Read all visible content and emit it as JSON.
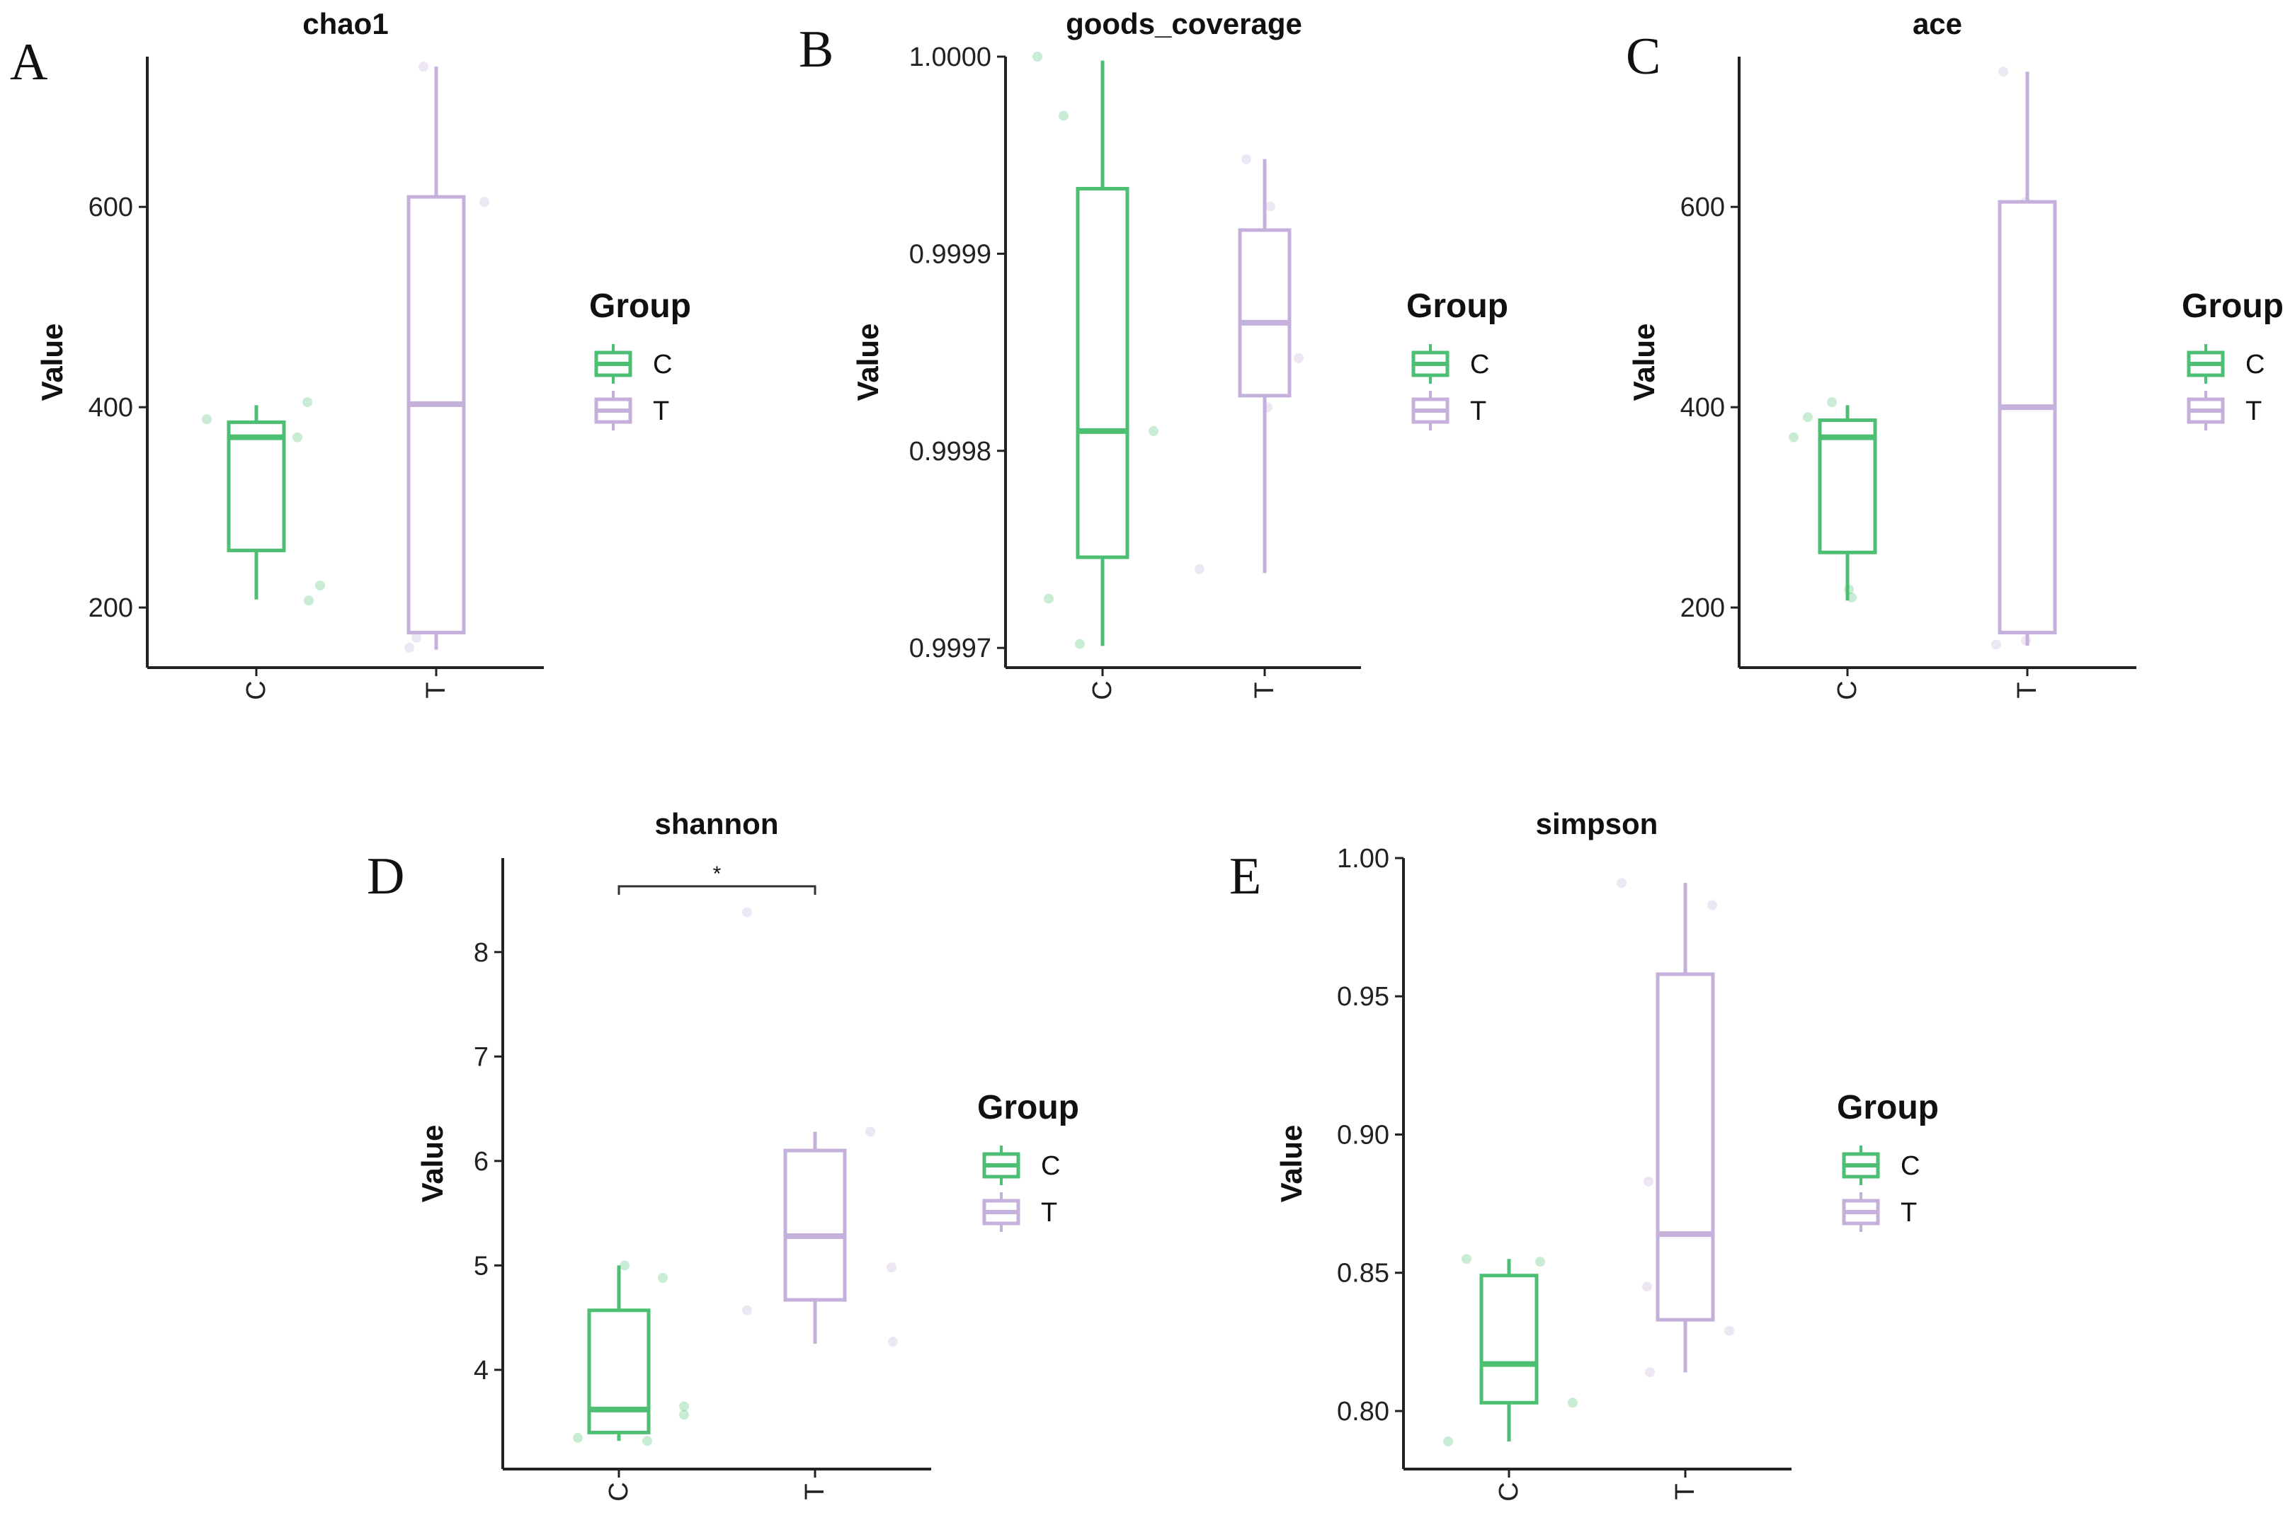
{
  "colors": {
    "C": "#4dbf73",
    "T": "#c5b0dc",
    "axis": "#222222"
  },
  "legend": {
    "title": "Group",
    "items": [
      "C",
      "T"
    ]
  },
  "chart_data": [
    {
      "panel": "A",
      "type": "box",
      "title": "chao1",
      "ylabel": "Value",
      "categories": [
        "C",
        "T"
      ],
      "ylim": [
        140,
        750
      ],
      "yticks": [
        200,
        400,
        600
      ],
      "boxes": [
        {
          "group": "C",
          "whisker_low": 208,
          "q1": 257,
          "median": 370,
          "q3": 385,
          "whisker_high": 402
        },
        {
          "group": "T",
          "whisker_low": 158,
          "q1": 175,
          "median": 403,
          "q3": 610,
          "whisker_high": 740
        }
      ],
      "points": [
        {
          "group": "C",
          "values": [
            388,
            405,
            370,
            222,
            207
          ]
        },
        {
          "group": "T",
          "values": [
            740,
            605,
            200,
            170,
            160
          ]
        }
      ]
    },
    {
      "panel": "B",
      "type": "box",
      "title": "goods_coverage",
      "ylabel": "Value",
      "categories": [
        "C",
        "T"
      ],
      "ylim": [
        0.99969,
        1.0
      ],
      "yticks": [
        0.9997,
        0.9998,
        0.9999,
        1.0
      ],
      "ytick_labels": [
        "0.9997",
        "0.9998",
        "0.9999",
        "1.0000"
      ],
      "boxes": [
        {
          "group": "C",
          "whisker_low": 0.999701,
          "q1": 0.999746,
          "median": 0.99981,
          "q3": 0.999933,
          "whisker_high": 0.999998
        },
        {
          "group": "T",
          "whisker_low": 0.999738,
          "q1": 0.999828,
          "median": 0.999865,
          "q3": 0.999912,
          "whisker_high": 0.999948
        }
      ],
      "points": [
        {
          "group": "C",
          "values": [
            1.0,
            0.99997,
            0.99981,
            0.999725,
            0.999702
          ]
        },
        {
          "group": "T",
          "values": [
            0.999948,
            0.999924,
            0.99988,
            0.999847,
            0.999822,
            0.99974
          ]
        }
      ]
    },
    {
      "panel": "C",
      "type": "box",
      "title": "ace",
      "ylabel": "Value",
      "categories": [
        "C",
        "T"
      ],
      "ylim": [
        140,
        750
      ],
      "yticks": [
        200,
        400,
        600
      ],
      "boxes": [
        {
          "group": "C",
          "whisker_low": 207,
          "q1": 255,
          "median": 370,
          "q3": 387,
          "whisker_high": 402
        },
        {
          "group": "T",
          "whisker_low": 162,
          "q1": 175,
          "median": 400,
          "q3": 605,
          "whisker_high": 735
        }
      ],
      "points": [
        {
          "group": "C",
          "values": [
            405,
            390,
            370,
            218,
            210
          ]
        },
        {
          "group": "T",
          "values": [
            735,
            605,
            200,
            167,
            163
          ]
        }
      ]
    },
    {
      "panel": "D",
      "type": "box",
      "title": "shannon",
      "ylabel": "Value",
      "categories": [
        "C",
        "T"
      ],
      "ylim": [
        3.05,
        8.9
      ],
      "yticks": [
        4,
        5,
        6,
        7,
        8
      ],
      "boxes": [
        {
          "group": "C",
          "whisker_low": 3.32,
          "q1": 3.4,
          "median": 3.62,
          "q3": 4.57,
          "whisker_high": 5.0
        },
        {
          "group": "T",
          "whisker_low": 4.25,
          "q1": 4.67,
          "median": 5.28,
          "q3": 6.1,
          "whisker_high": 6.28
        }
      ],
      "points": [
        {
          "group": "C",
          "values": [
            5.0,
            4.88,
            3.65,
            3.57,
            3.35,
            3.32
          ]
        },
        {
          "group": "T",
          "values": [
            8.38,
            6.28,
            5.55,
            4.98,
            4.57,
            4.27
          ]
        }
      ],
      "significance": {
        "label": "*",
        "between": [
          "C",
          "T"
        ],
        "y": 8.63
      }
    },
    {
      "panel": "E",
      "type": "box",
      "title": "simpson",
      "ylabel": "Value",
      "categories": [
        "C",
        "T"
      ],
      "ylim": [
        0.779,
        1.0
      ],
      "yticks": [
        0.8,
        0.85,
        0.9,
        0.95,
        1.0
      ],
      "ytick_labels": [
        "0.80",
        "0.85",
        "0.90",
        "0.95",
        "1.00"
      ],
      "boxes": [
        {
          "group": "C",
          "whisker_low": 0.789,
          "q1": 0.803,
          "median": 0.817,
          "q3": 0.849,
          "whisker_high": 0.855
        },
        {
          "group": "T",
          "whisker_low": 0.814,
          "q1": 0.833,
          "median": 0.864,
          "q3": 0.958,
          "whisker_high": 0.991
        }
      ],
      "points": [
        {
          "group": "C",
          "values": [
            0.855,
            0.854,
            0.83,
            0.803,
            0.789
          ]
        },
        {
          "group": "T",
          "values": [
            0.991,
            0.983,
            0.883,
            0.845,
            0.829,
            0.814
          ]
        }
      ]
    }
  ]
}
